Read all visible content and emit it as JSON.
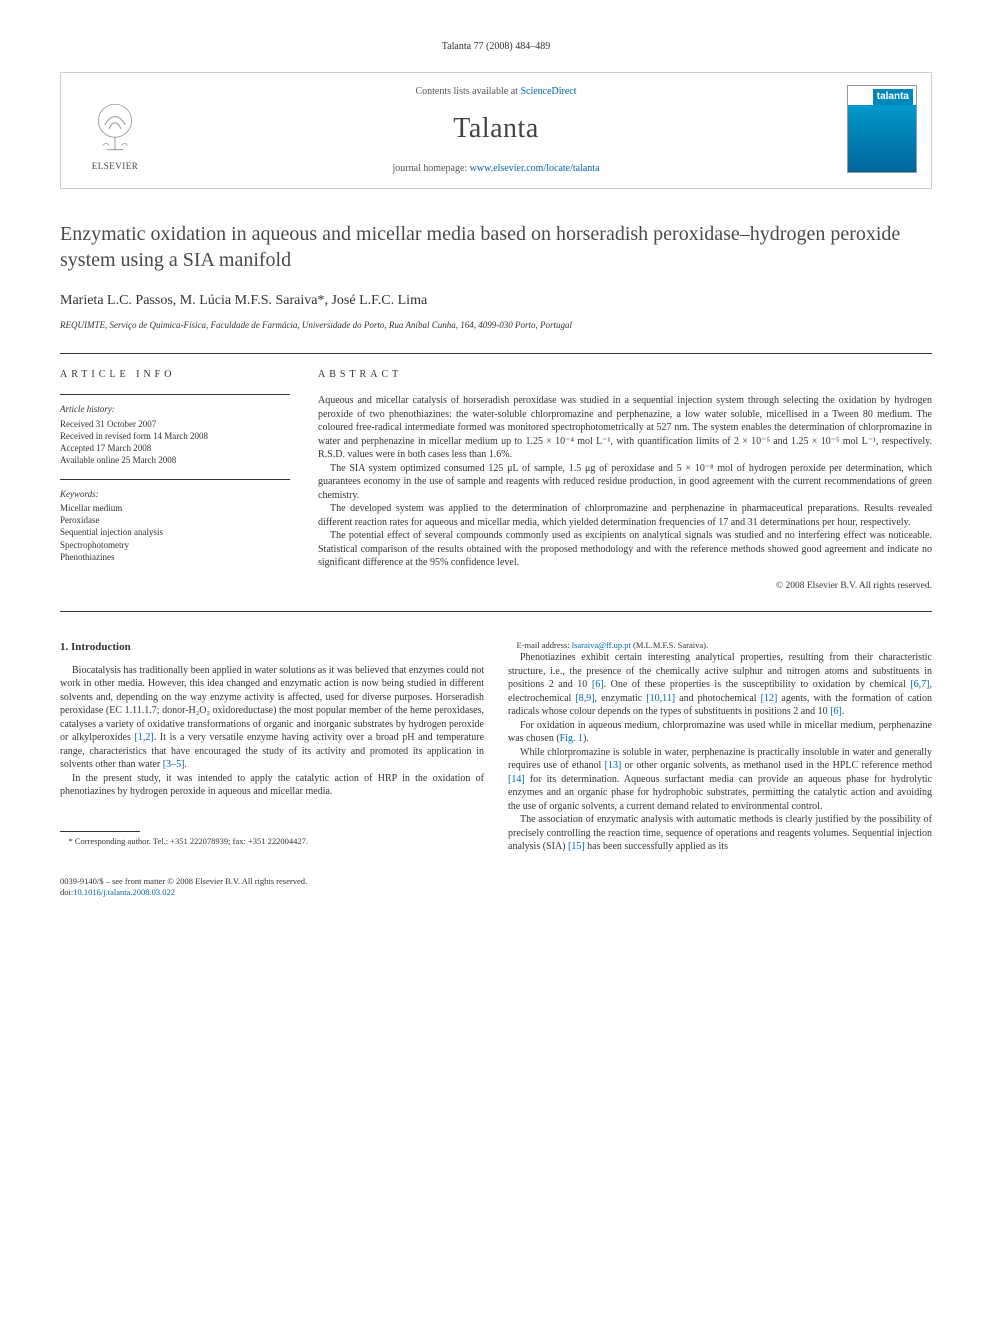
{
  "citation": "Talanta 77 (2008) 484–489",
  "journalBox": {
    "contentsPrefix": "Contents lists available at ",
    "contentsLinkText": "ScienceDirect",
    "journalName": "Talanta",
    "homepagePrefix": "journal homepage: ",
    "homepageLinkText": "www.elsevier.com/locate/talanta",
    "publisher": "ELSEVIER",
    "coverLabel": "talanta"
  },
  "title": "Enzymatic oxidation in aqueous and micellar media based on horseradish peroxidase–hydrogen peroxide system using a SIA manifold",
  "authors": "Marieta L.C. Passos, M. Lúcia M.F.S. Saraiva*, José L.F.C. Lima",
  "affiliation": "REQUIMTE, Serviço de Química-Física, Faculdade de Farmácia, Universidade do Porto, Rua Aníbal Cunha, 164, 4099-030 Porto, Portugal",
  "info": {
    "sectionLabel": "article info",
    "historyHead": "Article history:",
    "history": [
      "Received 31 October 2007",
      "Received in revised form 14 March 2008",
      "Accepted 17 March 2008",
      "Available online 25 March 2008"
    ],
    "keywordsHead": "Keywords:",
    "keywords": [
      "Micellar medium",
      "Peroxidase",
      "Sequential injection analysis",
      "Spectrophotometry",
      "Phenothiazines"
    ]
  },
  "abstract": {
    "sectionLabel": "abstract",
    "paras": [
      "Aqueous and micellar catalysis of horseradish peroxidase was studied in a sequential injection system through selecting the oxidation by hydrogen peroxide of two phenothiazines: the water-soluble chlorpromazine and perphenazine, a low water soluble, micellised in a Tween 80 medium. The coloured free-radical intermediate formed was monitored spectrophotometrically at 527 nm. The system enables the determination of chlorpromazine in water and perphenazine in micellar medium up to 1.25 × 10⁻⁴ mol L⁻¹, with quantification limits of 2 × 10⁻⁵ and 1.25 × 10⁻⁵ mol L⁻¹, respectively. R.S.D. values were in both cases less than 1.6%.",
      "The SIA system optimized consumed 125 μL of sample, 1.5 μg of peroxidase and 5 × 10⁻⁸ mol of hydrogen peroxide per determination, which guarantees economy in the use of sample and reagents with reduced residue production, in good agreement with the current recommendations of green chemistry.",
      "The developed system was applied to the determination of chlorpromazine and perphenazine in pharmaceutical preparations. Results revealed different reaction rates for aqueous and micellar media, which yielded determination frequencies of 17 and 31 determinations per hour, respectively.",
      "The potential effect of several compounds commonly used as excipients on analytical signals was studied and no interfering effect was noticeable. Statistical comparison of the results obtained with the proposed methodology and with the reference methods showed good agreement and indicate no significant difference at the 95% confidence level."
    ],
    "copyright": "© 2008 Elsevier B.V. All rights reserved."
  },
  "body": {
    "heading": "1.  Introduction",
    "paras": [
      "Biocatalysis has traditionally been applied in water solutions as it was believed that enzymes could not work in other media. However, this idea changed and enzymatic action is now being studied in different solvents and, depending on the way enzyme activity is affected, used for diverse purposes. Horseradish peroxidase (EC 1.11.1.7; donor-H₂O₂ oxidoreductase) the most popular member of the heme peroxidases, catalyses a variety of oxidative transformations of organic and inorganic substrates by hydrogen peroxide or alkylperoxides [1,2]. It is a very versatile enzyme having activity over a broad pH and temperature range, characteristics that have encouraged the study of its activity and promoted its application in solvents other than water [3–5].",
      "In the present study, it was intended to apply the catalytic action of HRP in the oxidation of phenotiazines by hydrogen peroxide in aqueous and micellar media.",
      "Phenotiazines exhibit certain interesting analytical properties, resulting from their characteristic structure, i.e., the presence of the chemically active sulphur and nitrogen atoms and substituents in positions 2 and 10 [6]. One of these properties is the susceptibility to oxidation by chemical [6,7], electrochemical [8,9], enzymatic [10,11] and photochemical [12] agents, with the formation of cation radicals whose colour depends on the types of substituents in positions 2 and 10 [6].",
      "For oxidation in aqueous medium, chlorpromazine was used while in micellar medium, perphenazine was chosen (Fig. 1).",
      "While chlorpromazine is soluble in water, perphenazine is practically insoluble in water and generally requires use of ethanol [13] or other organic solvents, as methanol used in the HPLC reference method [14] for its determination. Aqueous surfactant media can provide an aqueous phase for hydrolytic enzymes and an organic phase for hydrophobic substrates, permitting the catalytic action and avoiding the use of organic solvents, a current demand related to environmental control.",
      "The association of enzymatic analysis with automatic methods is clearly justified by the possibility of precisely controlling the reaction time, sequence of operations and reagents volumes. Sequential injection analysis (SIA) [15] has been successfully applied as its"
    ],
    "refLinks": [
      "[1,2]",
      "[3–5]",
      "[6]",
      "[6,7]",
      "[8,9]",
      "[10,11]",
      "[12]",
      "[6]",
      "Fig. 1",
      "[13]",
      "[14]",
      "[15]"
    ]
  },
  "footnote": {
    "corr": "* Corresponding author. Tel.: +351 222078939; fax: +351 222004427.",
    "emailLabel": "E-mail address: ",
    "email": "lsaraiva@ff.up.pt",
    "emailSuffix": " (M.L.M.F.S. Saraiva)."
  },
  "footer": {
    "line1": "0039-9140/$ – see front matter © 2008 Elsevier B.V. All rights reserved.",
    "doiPrefix": "doi:",
    "doi": "10.1016/j.talanta.2008.03.022"
  },
  "colors": {
    "link": "#0066aa",
    "text": "#333333",
    "border": "#cccccc"
  }
}
